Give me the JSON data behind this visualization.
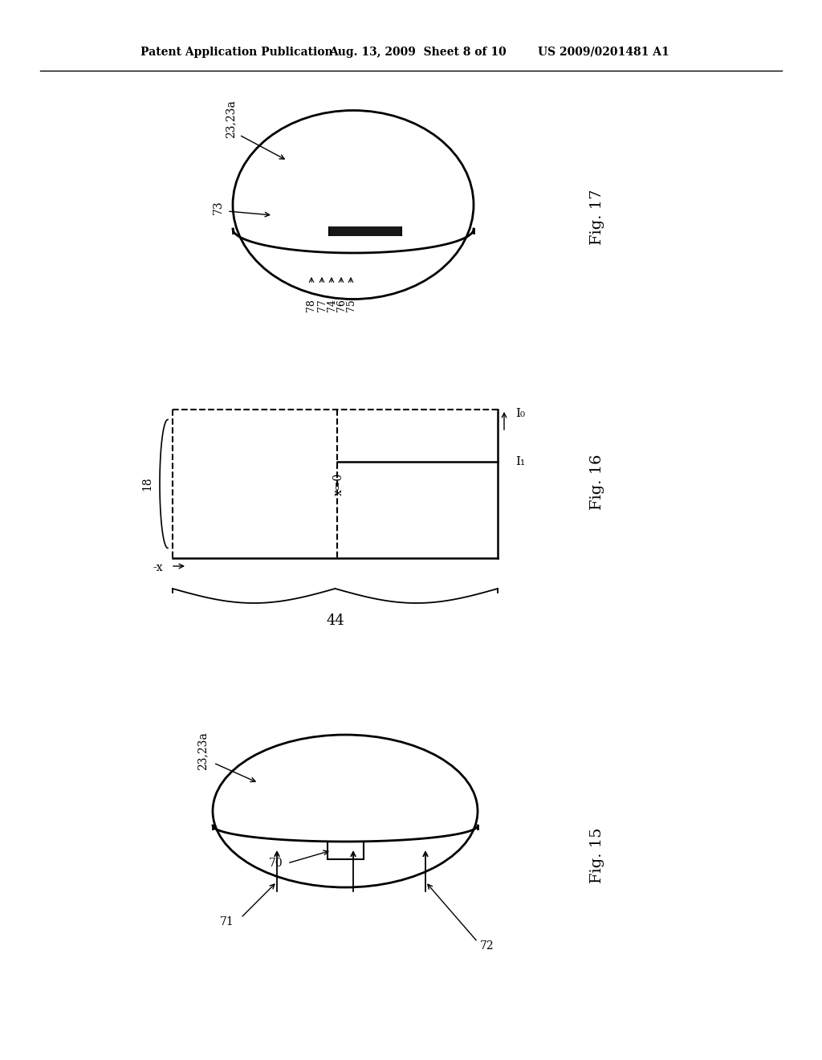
{
  "bg_color": "#ffffff",
  "header_left": "Patent Application Publication",
  "header_mid": "Aug. 13, 2009  Sheet 8 of 10",
  "header_right": "US 2009/0201481 A1",
  "fig17_label": "Fig. 17",
  "fig16_label": "Fig. 16",
  "fig15_label": "Fig. 15",
  "label_23_23a": "23,23a",
  "label_73": "73",
  "label_78": "78",
  "label_77": "77",
  "label_74": "74",
  "label_76": "76",
  "label_75": "75",
  "label_18": "18",
  "label_x0": "x=0",
  "label_neg_x": "-x",
  "label_44": "44",
  "label_I0": "I₀",
  "label_I1": "I₁",
  "label_23_23a_bot": "23,23a",
  "label_70": "70",
  "label_71": "71",
  "label_72": "72"
}
